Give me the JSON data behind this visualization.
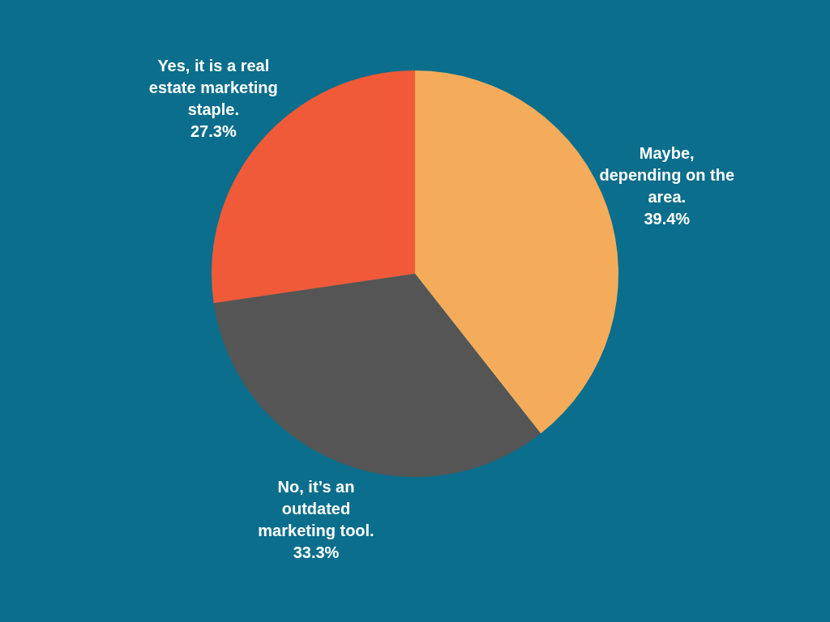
{
  "chart_data": {
    "type": "pie",
    "categories": [
      "Maybe, depending on the area.",
      "No, it’s an outdated marketing tool.",
      "Yes, it is a real estate marketing staple."
    ],
    "values": [
      39.4,
      33.3,
      27.3
    ],
    "colors": [
      "#f4ac5a",
      "#555555",
      "#f05a38"
    ],
    "value_labels": [
      "39.4%",
      "33.3%",
      "27.3%"
    ]
  }
}
